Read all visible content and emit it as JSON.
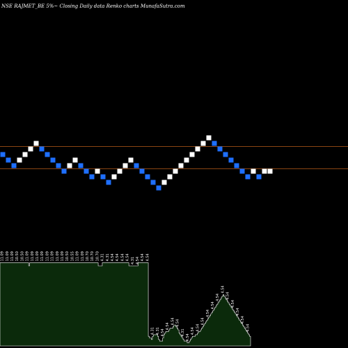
{
  "chart_data": {
    "type": "renko",
    "title": "NSE RAJMET_BE 5%~  Closing Daily data  Renko  charts MunafaSutra.com",
    "colors": {
      "background": "#000000",
      "up_brick": "#ffffff",
      "down_brick": "#1e6fff",
      "reference_line": "#8b4513",
      "volume_fill": "#0b2a0b",
      "volume_stroke": "#ffffff"
    },
    "bricks": [
      {
        "dir": "down",
        "level": 0
      },
      {
        "dir": "down",
        "level": -1
      },
      {
        "dir": "down",
        "level": -2
      },
      {
        "dir": "up",
        "level": -1
      },
      {
        "dir": "up",
        "level": 0
      },
      {
        "dir": "up",
        "level": 1
      },
      {
        "dir": "up",
        "level": 2
      },
      {
        "dir": "down",
        "level": 1
      },
      {
        "dir": "down",
        "level": 0
      },
      {
        "dir": "down",
        "level": -1
      },
      {
        "dir": "down",
        "level": -2
      },
      {
        "dir": "down",
        "level": -3
      },
      {
        "dir": "up",
        "level": -2
      },
      {
        "dir": "up",
        "level": -1
      },
      {
        "dir": "down",
        "level": -2
      },
      {
        "dir": "down",
        "level": -3
      },
      {
        "dir": "down",
        "level": -4
      },
      {
        "dir": "up",
        "level": -3
      },
      {
        "dir": "down",
        "level": -4
      },
      {
        "dir": "down",
        "level": -5
      },
      {
        "dir": "up",
        "level": -4
      },
      {
        "dir": "up",
        "level": -3
      },
      {
        "dir": "up",
        "level": -2
      },
      {
        "dir": "up",
        "level": -1
      },
      {
        "dir": "down",
        "level": -2
      },
      {
        "dir": "down",
        "level": -3
      },
      {
        "dir": "down",
        "level": -4
      },
      {
        "dir": "down",
        "level": -5
      },
      {
        "dir": "down",
        "level": -6
      },
      {
        "dir": "up",
        "level": -5
      },
      {
        "dir": "up",
        "level": -4
      },
      {
        "dir": "up",
        "level": -3
      },
      {
        "dir": "up",
        "level": -2
      },
      {
        "dir": "up",
        "level": -1
      },
      {
        "dir": "up",
        "level": 0
      },
      {
        "dir": "up",
        "level": 1
      },
      {
        "dir": "up",
        "level": 2
      },
      {
        "dir": "up",
        "level": 3
      },
      {
        "dir": "down",
        "level": 2
      },
      {
        "dir": "down",
        "level": 1
      },
      {
        "dir": "down",
        "level": 0
      },
      {
        "dir": "down",
        "level": -1
      },
      {
        "dir": "down",
        "level": -2
      },
      {
        "dir": "down",
        "level": -3
      },
      {
        "dir": "down",
        "level": -4
      },
      {
        "dir": "up",
        "level": -3
      },
      {
        "dir": "down",
        "level": -4
      },
      {
        "dir": "up",
        "level": -3
      },
      {
        "dir": "up",
        "level": -3
      }
    ],
    "reference_lines": [
      1.5,
      -2.5
    ],
    "volume_labels": [
      "11.09",
      "11.09",
      "11.09",
      "10.50",
      "10.50",
      "11.09",
      "11.09",
      "11.09",
      "11.09",
      "11.09",
      "11.09",
      "11.09",
      "11.09",
      "10.50",
      "10.55",
      "11.09",
      "11.09",
      "10.70",
      "10.70",
      "10.70",
      "4.31",
      "4.31",
      "4.54",
      "4.54",
      "4.54",
      "4.54",
      "4.31",
      "4.54",
      "4.54",
      "4.54",
      "4.31",
      "4.31",
      "4.54",
      "4.54",
      "4.54",
      "4.54",
      "4.31",
      "4.54",
      "4.54",
      "4.54",
      "4.54",
      "4.54",
      "4.54",
      "4.54",
      "4.54",
      "4.54",
      "4.54",
      "4.54",
      "4.54",
      "4.54"
    ],
    "volumes": [
      0.52,
      0.52,
      0.52,
      0.52,
      0.52,
      0.52,
      0.52,
      0.52,
      0.52,
      0.52,
      0.52,
      0.52,
      0.52,
      0.52,
      0.52,
      0.52,
      0.52,
      0.52,
      0.52,
      0.52,
      0.52,
      0.52,
      0.52,
      0.52,
      0.52,
      0.52,
      0.52,
      0.52,
      0.5,
      0.52,
      0.52,
      0.52,
      0.52,
      0.52,
      0.52,
      0.52,
      0.52,
      0.52,
      0.52,
      0.52,
      0.52,
      0.52,
      0.52,
      0.52,
      0.52,
      0.52,
      0.52,
      0.52,
      0.52,
      0.52,
      0.52,
      0.52,
      0.52,
      0.52,
      0.52,
      0.52,
      0.52,
      0.52,
      0.52,
      0.52,
      0.52,
      0.52,
      0.52,
      0.52,
      0.52,
      0.52,
      0.52,
      0.52,
      0.52,
      0.52,
      0.52,
      0.52,
      0.52,
      0.52,
      0.52,
      0.52,
      0.52,
      0.52,
      0.52,
      0.52,
      0.52,
      0.52,
      0.52,
      0.52,
      0.52,
      0.52,
      0.52,
      0.52,
      0.52,
      0.52,
      0.52,
      0.52,
      0.52,
      0.52,
      0.52,
      0.52,
      0.5,
      0.5,
      0.5,
      0.5,
      0.52,
      0.52,
      0.52,
      0.52,
      0.52,
      0.52,
      0.52,
      0.52,
      0.52,
      0.52,
      0.52,
      0.52,
      0.52,
      0.52,
      0.52,
      0.52,
      0.52,
      0.52,
      0.52,
      0.52,
      0.52,
      0.52,
      0.52,
      0.52,
      0.52,
      0.52,
      0.5,
      0.5,
      0.5,
      0.5,
      0.5,
      0.5,
      0.5,
      0.5,
      0.5,
      0.52,
      0.52,
      0.52,
      0.52,
      0.52,
      0.52,
      0.52,
      0.52,
      0.52,
      0.52,
      0.06,
      0.05,
      0.05,
      0.04,
      0.06,
      0.07,
      0.07,
      0.07,
      0.07,
      0.06,
      0.04,
      0.03,
      0.03,
      0.03,
      0.05,
      0.07,
      0.08,
      0.09,
      0.09,
      0.09,
      0.1,
      0.11,
      0.11,
      0.11,
      0.12,
      0.13,
      0.13,
      0.12,
      0.11,
      0.1,
      0.08,
      0.07,
      0.06,
      0.05,
      0.04,
      0.03,
      0.03,
      0.03,
      0.02,
      0.02,
      0.03,
      0.04,
      0.05,
      0.06,
      0.06,
      0.06,
      0.07,
      0.07,
      0.08,
      0.09,
      0.09,
      0.1,
      0.11,
      0.12,
      0.13,
      0.14,
      0.15,
      0.16,
      0.17,
      0.18,
      0.19,
      0.2,
      0.21,
      0.22,
      0.23,
      0.24,
      0.25,
      0.26,
      0.27,
      0.28,
      0.29,
      0.3,
      0.31,
      0.32,
      0.31,
      0.3,
      0.29,
      0.28,
      0.27,
      0.26,
      0.25,
      0.24,
      0.23,
      0.22,
      0.21,
      0.2,
      0.19,
      0.18,
      0.17,
      0.16,
      0.15,
      0.14,
      0.13,
      0.12,
      0.11,
      0.1,
      0.09,
      0.08,
      0.07,
      0.06
    ]
  }
}
